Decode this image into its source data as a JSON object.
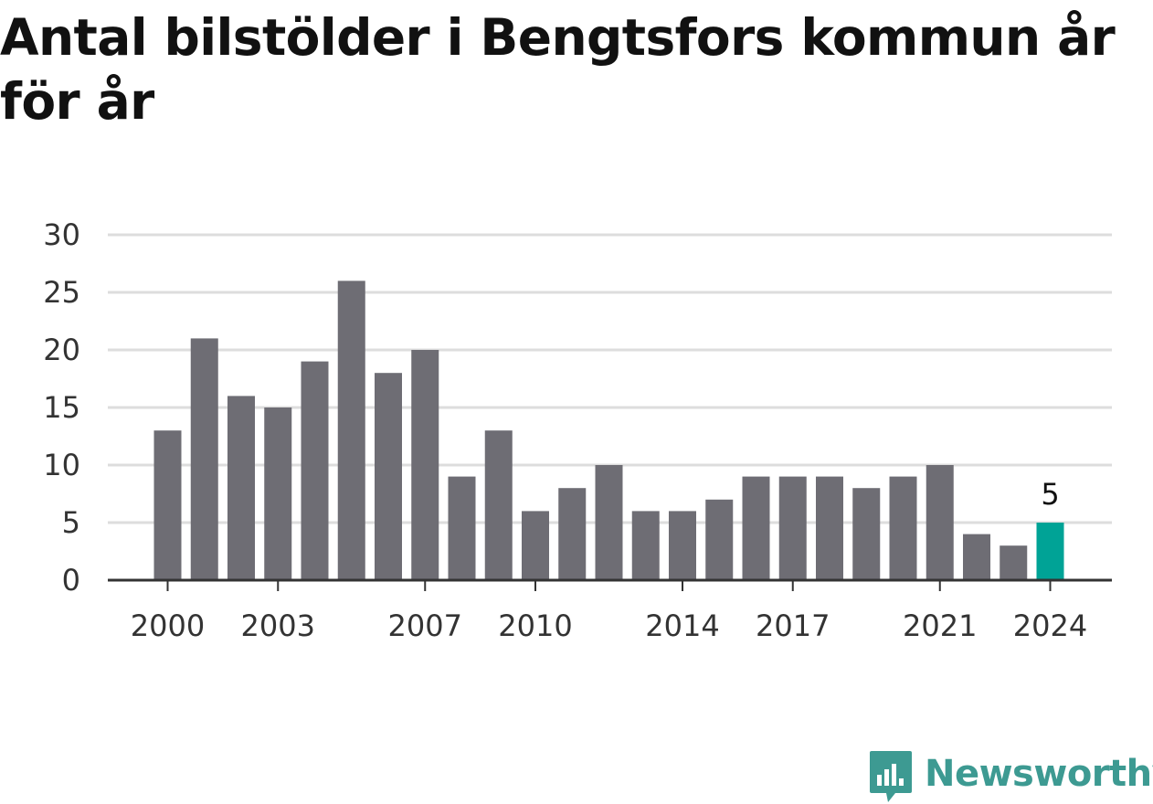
{
  "title": "Antal bilstölder i Bengtsfors kommun år för år",
  "colors": {
    "bar": "#6e6d74",
    "highlight": "#00a396",
    "grid": "#dddddd",
    "axis": "#333333",
    "text": "#333333",
    "brand": "#3d9a92"
  },
  "chart_data": {
    "type": "bar",
    "categories": [
      "2000",
      "2001",
      "2002",
      "2003",
      "2004",
      "2005",
      "2006",
      "2007",
      "2008",
      "2009",
      "2010",
      "2011",
      "2012",
      "2013",
      "2014",
      "2015",
      "2016",
      "2017",
      "2018",
      "2019",
      "2020",
      "2021",
      "2022",
      "2023",
      "2024"
    ],
    "values": [
      13,
      21,
      16,
      15,
      19,
      26,
      18,
      20,
      9,
      13,
      6,
      8,
      10,
      6,
      6,
      7,
      9,
      9,
      9,
      8,
      9,
      10,
      4,
      3,
      5
    ],
    "x_tick_labels": [
      "2000",
      "2003",
      "2007",
      "2010",
      "2014",
      "2017",
      "2021",
      "2024"
    ],
    "y_ticks": [
      0,
      5,
      10,
      15,
      20,
      25,
      30
    ],
    "ylim": [
      0,
      30
    ],
    "highlight_category": "2024",
    "data_labels": [
      {
        "category": "2024",
        "text": "5"
      }
    ],
    "xlabel": "",
    "ylabel": "",
    "grid": true
  },
  "logo": {
    "icon": "newsworthy-chart-bubble-icon",
    "text": "Newsworthy"
  }
}
